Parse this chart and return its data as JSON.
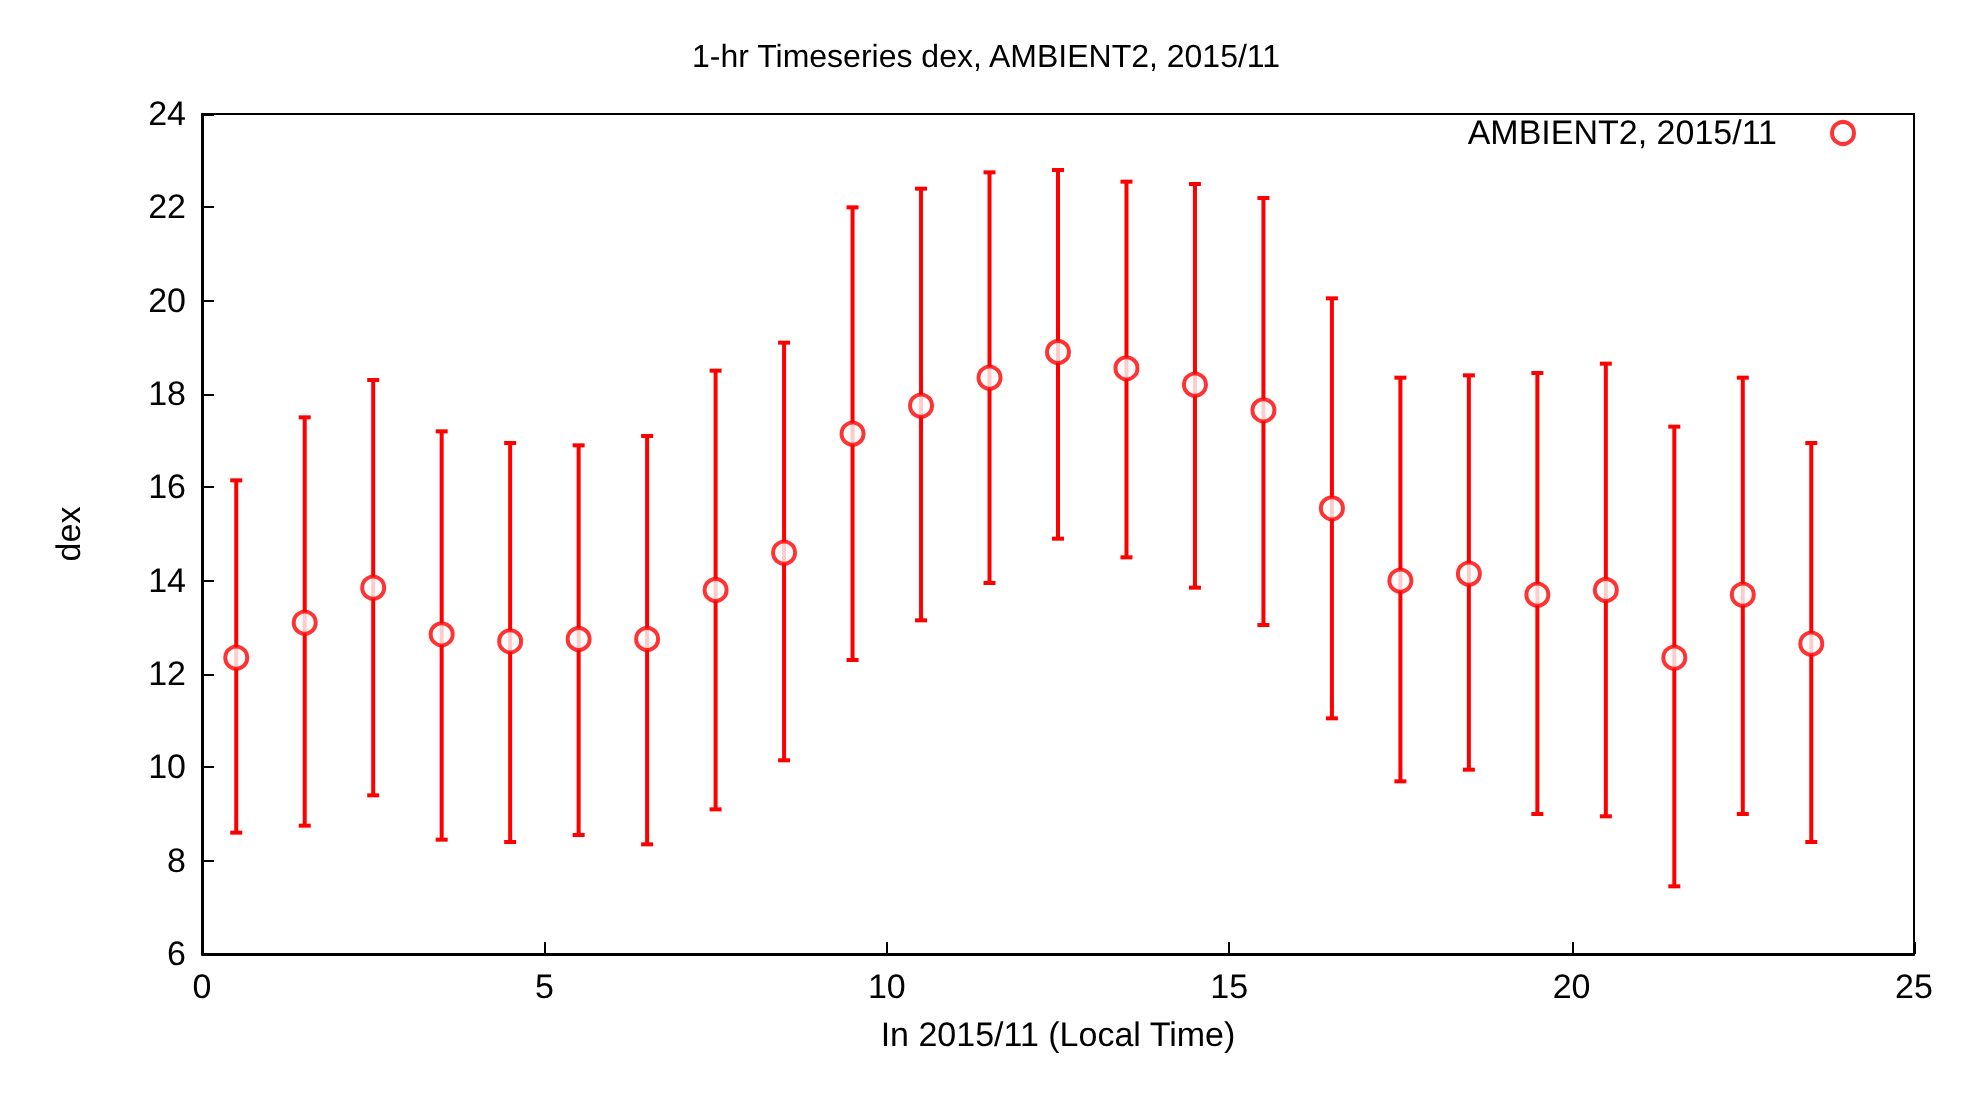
{
  "chart_data": {
    "type": "scatter",
    "title": "1-hr Timeseries dex, AMBIENT2, 2015/11",
    "xlabel": "In 2015/11 (Local Time)",
    "ylabel": "dex",
    "x": [
      0.5,
      1.5,
      2.5,
      3.5,
      4.5,
      5.5,
      6.5,
      7.5,
      8.5,
      9.5,
      10.5,
      11.5,
      12.5,
      13.5,
      14.5,
      15.5,
      16.5,
      17.5,
      18.5,
      19.5,
      20.5,
      21.5,
      22.5,
      23.5
    ],
    "series": [
      {
        "name": "AMBIENT2, 2015/11",
        "color": "#ff0000",
        "values": [
          12.35,
          13.1,
          13.85,
          12.85,
          12.7,
          12.75,
          12.75,
          13.8,
          14.6,
          17.15,
          17.75,
          18.35,
          18.9,
          18.55,
          18.2,
          17.65,
          15.55,
          14.0,
          14.15,
          13.7,
          13.8,
          12.35,
          13.7,
          12.65
        ],
        "errors": [
          [
            8.6,
            16.15
          ],
          [
            8.75,
            17.5
          ],
          [
            9.4,
            18.3
          ],
          [
            8.45,
            17.2
          ],
          [
            8.4,
            16.95
          ],
          [
            8.55,
            16.9
          ],
          [
            8.35,
            17.1
          ],
          [
            9.1,
            18.5
          ],
          [
            10.15,
            19.1
          ],
          [
            12.3,
            22.0
          ],
          [
            13.15,
            22.4
          ],
          [
            13.95,
            22.75
          ],
          [
            14.9,
            22.8
          ],
          [
            14.5,
            22.55
          ],
          [
            13.85,
            22.5
          ],
          [
            13.05,
            22.2
          ],
          [
            11.05,
            20.05
          ],
          [
            9.7,
            18.35
          ],
          [
            9.95,
            18.4
          ],
          [
            9.0,
            18.45
          ],
          [
            8.95,
            18.65
          ],
          [
            7.45,
            17.3
          ],
          [
            9.0,
            18.35
          ],
          [
            8.4,
            16.95
          ]
        ]
      }
    ],
    "xlim": [
      0,
      25
    ],
    "xticks": [
      0,
      5,
      10,
      15,
      20,
      25
    ],
    "ylim": [
      6,
      24
    ],
    "yticks": [
      6,
      8,
      10,
      12,
      14,
      16,
      18,
      20,
      22,
      24
    ],
    "marker": "circle",
    "legend": "top right",
    "grid": false
  }
}
